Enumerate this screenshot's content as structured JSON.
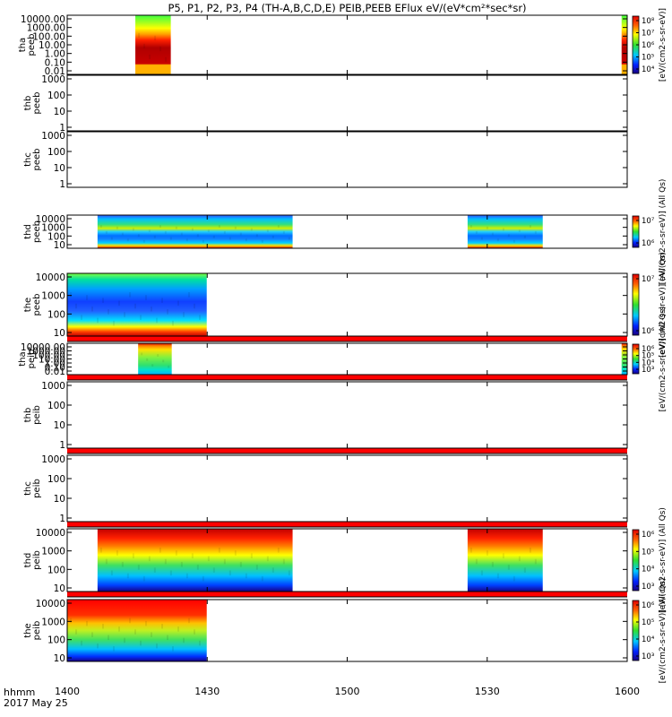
{
  "title": "P5, P1, P2, P3, P4 (TH-A,B,C,D,E) PEIB,PEEB EFlux eV/(eV*cm²*sec*sr)",
  "chart_data": {
    "type": "heatmap",
    "x_ticks": [
      "1400",
      "1430",
      "1500",
      "1530",
      "1600"
    ],
    "x_range_minutes": [
      0,
      120
    ],
    "x_tick_minutes": [
      0,
      30,
      60,
      90,
      120
    ],
    "x_axis_label": "hhmm",
    "date_label": "2017 May 25",
    "colorbar_label": "[eV/(cm2-s-sr-eV)]",
    "colorbar_label_alt": "[eV/(cm2-s-sr-eV)] (All Qs)",
    "panels": [
      {
        "probe": "tha",
        "instrument": "peeb",
        "y_ticks": [
          "10000.00",
          "1000.00",
          "100.00",
          "10.00",
          "1.00",
          "0.10",
          "0.01"
        ],
        "cbar_ticks": [
          "10⁸",
          "10⁷",
          "10⁶",
          "10⁵",
          "10⁴"
        ],
        "cbar_label": "[eV/(cm2-s-sr-eV)]",
        "blocks": [
          {
            "start": 14.6,
            "end": 22.2,
            "style": "tha_e"
          },
          {
            "start": 118.8,
            "end": 120,
            "style": "tha_e"
          }
        ]
      },
      {
        "probe": "thb",
        "instrument": "peeb",
        "y_ticks": [
          "1000",
          "100",
          "10",
          "1"
        ],
        "cbar_ticks": [],
        "cbar_label": "",
        "blocks": []
      },
      {
        "probe": "thc",
        "instrument": "peeb",
        "y_ticks": [
          "1000",
          "100",
          "10",
          "1"
        ],
        "cbar_ticks": [],
        "cbar_label": "",
        "blocks": []
      },
      {
        "probe": "thd",
        "instrument": "peeb",
        "y_ticks": [
          "10000",
          "1000",
          "100",
          "10"
        ],
        "cbar_ticks": [
          "10⁷",
          "10⁶"
        ],
        "cbar_label": "[eV/(cm2-s-sr-eV)] (All Qs)",
        "blocks": [
          {
            "start": 6.5,
            "end": 48.3,
            "style": "thd_e"
          },
          {
            "start": 85.8,
            "end": 101.9,
            "style": "thd_e"
          }
        ]
      },
      {
        "probe": "the",
        "instrument": "peeb",
        "y_ticks": [
          "10000",
          "1000",
          "100",
          "10"
        ],
        "cbar_ticks": [
          "10⁷",
          "10⁶"
        ],
        "cbar_label": "[eV/(cm2-s-sr-eV)] (All Qs)",
        "blocks": [
          {
            "start": 0,
            "end": 29.9,
            "style": "the_e"
          }
        ]
      },
      {
        "probe": "tha",
        "instrument": "peib",
        "y_ticks": [
          "10000.00",
          "1000.00",
          "100.00",
          "10.00",
          "1.00",
          "0.10",
          "0.01"
        ],
        "cbar_ticks": [
          "10⁶",
          "10⁵",
          "10⁴",
          "10³"
        ],
        "cbar_label": "[eV/(cm2-s-sr-eV)] (All Qs)",
        "blocks": [
          {
            "start": 15.2,
            "end": 22.4,
            "style": "tha_i"
          },
          {
            "start": 118.8,
            "end": 120,
            "style": "tha_i"
          }
        ]
      },
      {
        "probe": "thb",
        "instrument": "peib",
        "y_ticks": [
          "1000",
          "100",
          "10",
          "1"
        ],
        "cbar_ticks": [],
        "cbar_label": "",
        "blocks": []
      },
      {
        "probe": "thc",
        "instrument": "peib",
        "y_ticks": [
          "1000",
          "100",
          "10",
          "1"
        ],
        "cbar_ticks": [],
        "cbar_label": "",
        "blocks": []
      },
      {
        "probe": "thd",
        "instrument": "peib",
        "y_ticks": [
          "10000",
          "1000",
          "100",
          "10"
        ],
        "cbar_ticks": [
          "10⁶",
          "10⁵",
          "10⁴",
          "10³"
        ],
        "cbar_label": "[eV/(cm2-s-sr-eV)] (All Qs)",
        "blocks": [
          {
            "start": 6.5,
            "end": 48.3,
            "style": "thd_i"
          },
          {
            "start": 85.8,
            "end": 101.9,
            "style": "thd_i"
          }
        ]
      },
      {
        "probe": "the",
        "instrument": "peib",
        "y_ticks": [
          "10000",
          "1000",
          "100",
          "10"
        ],
        "cbar_ticks": [
          "10⁶",
          "10⁵",
          "10⁴",
          "10³"
        ],
        "cbar_label": "[eV/(cm2-s-sr-eV)] (All Qs)",
        "blocks": [
          {
            "start": 0,
            "end": 29.9,
            "style": "the_i"
          }
        ]
      }
    ]
  }
}
